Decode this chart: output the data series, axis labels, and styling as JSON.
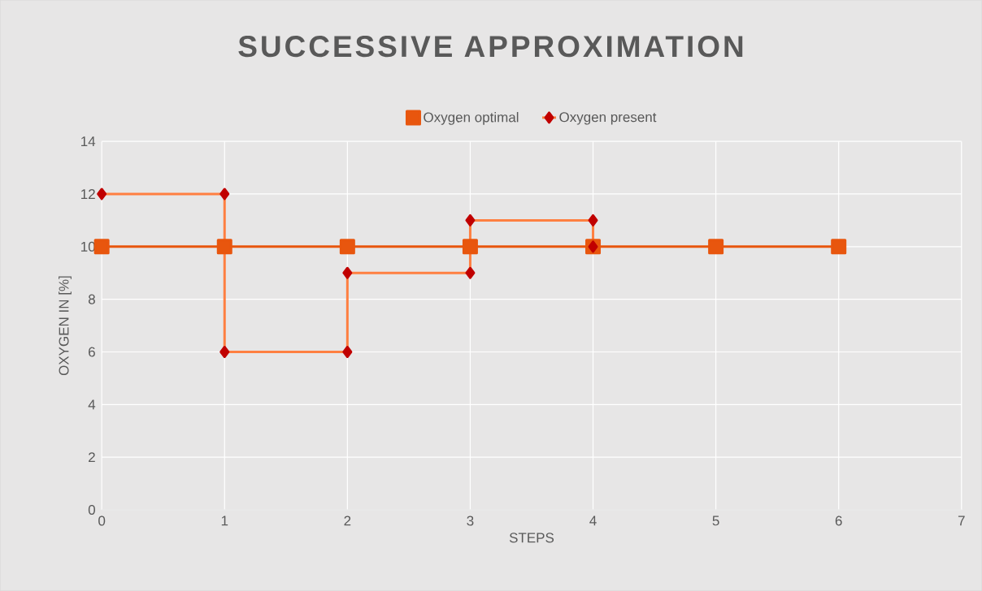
{
  "chart_data": {
    "type": "line",
    "title": "SUCCESSIVE APPROXIMATION",
    "xlabel": "STEPS",
    "ylabel": "OXYGEN IN [%]",
    "xlim": [
      0,
      7
    ],
    "xticks": [
      0,
      1,
      2,
      3,
      4,
      5,
      6,
      7
    ],
    "ylim": [
      0,
      14
    ],
    "yticks": [
      0,
      2,
      4,
      6,
      8,
      10,
      12,
      14
    ],
    "grid": true,
    "legend": "top",
    "line_style": "solid",
    "series": [
      {
        "name": "Oxygen optimal",
        "color": "#e8560e",
        "marker": "square",
        "x": [
          0,
          1,
          2,
          3,
          4,
          5,
          6
        ],
        "values": [
          10,
          10,
          10,
          10,
          10,
          10,
          10
        ]
      },
      {
        "name": "Oxygen present",
        "color": "#c00000",
        "marker": "diamond",
        "x": [
          0,
          1,
          1,
          2,
          2,
          3,
          3,
          4,
          4
        ],
        "values": [
          12,
          12,
          6,
          6,
          9,
          9,
          11,
          11,
          10
        ]
      }
    ]
  }
}
